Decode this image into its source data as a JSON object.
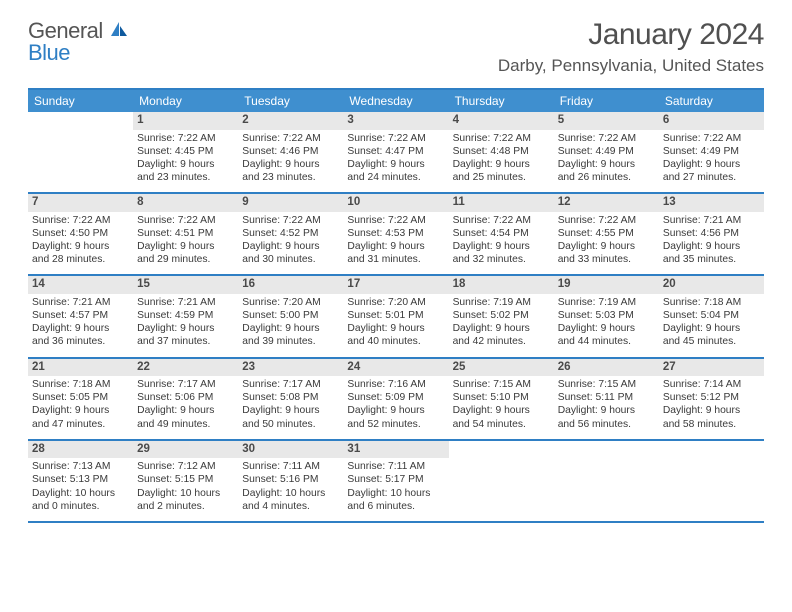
{
  "logo": {
    "word1": "General",
    "word2": "Blue"
  },
  "title": {
    "month": "January 2024",
    "location": "Darby, Pennsylvania, United States"
  },
  "colors": {
    "brand_blue": "#2f7fc4",
    "header_bg": "#3f8fcf",
    "daynum_bg": "#e8e8e8",
    "text": "#3a3a3a"
  },
  "dayNames": [
    "Sunday",
    "Monday",
    "Tuesday",
    "Wednesday",
    "Thursday",
    "Friday",
    "Saturday"
  ],
  "weeks": [
    [
      {
        "n": "",
        "sr": "",
        "ss": "",
        "dl": ""
      },
      {
        "n": "1",
        "sr": "Sunrise: 7:22 AM",
        "ss": "Sunset: 4:45 PM",
        "dl": "Daylight: 9 hours and 23 minutes."
      },
      {
        "n": "2",
        "sr": "Sunrise: 7:22 AM",
        "ss": "Sunset: 4:46 PM",
        "dl": "Daylight: 9 hours and 23 minutes."
      },
      {
        "n": "3",
        "sr": "Sunrise: 7:22 AM",
        "ss": "Sunset: 4:47 PM",
        "dl": "Daylight: 9 hours and 24 minutes."
      },
      {
        "n": "4",
        "sr": "Sunrise: 7:22 AM",
        "ss": "Sunset: 4:48 PM",
        "dl": "Daylight: 9 hours and 25 minutes."
      },
      {
        "n": "5",
        "sr": "Sunrise: 7:22 AM",
        "ss": "Sunset: 4:49 PM",
        "dl": "Daylight: 9 hours and 26 minutes."
      },
      {
        "n": "6",
        "sr": "Sunrise: 7:22 AM",
        "ss": "Sunset: 4:49 PM",
        "dl": "Daylight: 9 hours and 27 minutes."
      }
    ],
    [
      {
        "n": "7",
        "sr": "Sunrise: 7:22 AM",
        "ss": "Sunset: 4:50 PM",
        "dl": "Daylight: 9 hours and 28 minutes."
      },
      {
        "n": "8",
        "sr": "Sunrise: 7:22 AM",
        "ss": "Sunset: 4:51 PM",
        "dl": "Daylight: 9 hours and 29 minutes."
      },
      {
        "n": "9",
        "sr": "Sunrise: 7:22 AM",
        "ss": "Sunset: 4:52 PM",
        "dl": "Daylight: 9 hours and 30 minutes."
      },
      {
        "n": "10",
        "sr": "Sunrise: 7:22 AM",
        "ss": "Sunset: 4:53 PM",
        "dl": "Daylight: 9 hours and 31 minutes."
      },
      {
        "n": "11",
        "sr": "Sunrise: 7:22 AM",
        "ss": "Sunset: 4:54 PM",
        "dl": "Daylight: 9 hours and 32 minutes."
      },
      {
        "n": "12",
        "sr": "Sunrise: 7:22 AM",
        "ss": "Sunset: 4:55 PM",
        "dl": "Daylight: 9 hours and 33 minutes."
      },
      {
        "n": "13",
        "sr": "Sunrise: 7:21 AM",
        "ss": "Sunset: 4:56 PM",
        "dl": "Daylight: 9 hours and 35 minutes."
      }
    ],
    [
      {
        "n": "14",
        "sr": "Sunrise: 7:21 AM",
        "ss": "Sunset: 4:57 PM",
        "dl": "Daylight: 9 hours and 36 minutes."
      },
      {
        "n": "15",
        "sr": "Sunrise: 7:21 AM",
        "ss": "Sunset: 4:59 PM",
        "dl": "Daylight: 9 hours and 37 minutes."
      },
      {
        "n": "16",
        "sr": "Sunrise: 7:20 AM",
        "ss": "Sunset: 5:00 PM",
        "dl": "Daylight: 9 hours and 39 minutes."
      },
      {
        "n": "17",
        "sr": "Sunrise: 7:20 AM",
        "ss": "Sunset: 5:01 PM",
        "dl": "Daylight: 9 hours and 40 minutes."
      },
      {
        "n": "18",
        "sr": "Sunrise: 7:19 AM",
        "ss": "Sunset: 5:02 PM",
        "dl": "Daylight: 9 hours and 42 minutes."
      },
      {
        "n": "19",
        "sr": "Sunrise: 7:19 AM",
        "ss": "Sunset: 5:03 PM",
        "dl": "Daylight: 9 hours and 44 minutes."
      },
      {
        "n": "20",
        "sr": "Sunrise: 7:18 AM",
        "ss": "Sunset: 5:04 PM",
        "dl": "Daylight: 9 hours and 45 minutes."
      }
    ],
    [
      {
        "n": "21",
        "sr": "Sunrise: 7:18 AM",
        "ss": "Sunset: 5:05 PM",
        "dl": "Daylight: 9 hours and 47 minutes."
      },
      {
        "n": "22",
        "sr": "Sunrise: 7:17 AM",
        "ss": "Sunset: 5:06 PM",
        "dl": "Daylight: 9 hours and 49 minutes."
      },
      {
        "n": "23",
        "sr": "Sunrise: 7:17 AM",
        "ss": "Sunset: 5:08 PM",
        "dl": "Daylight: 9 hours and 50 minutes."
      },
      {
        "n": "24",
        "sr": "Sunrise: 7:16 AM",
        "ss": "Sunset: 5:09 PM",
        "dl": "Daylight: 9 hours and 52 minutes."
      },
      {
        "n": "25",
        "sr": "Sunrise: 7:15 AM",
        "ss": "Sunset: 5:10 PM",
        "dl": "Daylight: 9 hours and 54 minutes."
      },
      {
        "n": "26",
        "sr": "Sunrise: 7:15 AM",
        "ss": "Sunset: 5:11 PM",
        "dl": "Daylight: 9 hours and 56 minutes."
      },
      {
        "n": "27",
        "sr": "Sunrise: 7:14 AM",
        "ss": "Sunset: 5:12 PM",
        "dl": "Daylight: 9 hours and 58 minutes."
      }
    ],
    [
      {
        "n": "28",
        "sr": "Sunrise: 7:13 AM",
        "ss": "Sunset: 5:13 PM",
        "dl": "Daylight: 10 hours and 0 minutes."
      },
      {
        "n": "29",
        "sr": "Sunrise: 7:12 AM",
        "ss": "Sunset: 5:15 PM",
        "dl": "Daylight: 10 hours and 2 minutes."
      },
      {
        "n": "30",
        "sr": "Sunrise: 7:11 AM",
        "ss": "Sunset: 5:16 PM",
        "dl": "Daylight: 10 hours and 4 minutes."
      },
      {
        "n": "31",
        "sr": "Sunrise: 7:11 AM",
        "ss": "Sunset: 5:17 PM",
        "dl": "Daylight: 10 hours and 6 minutes."
      },
      {
        "n": "",
        "sr": "",
        "ss": "",
        "dl": ""
      },
      {
        "n": "",
        "sr": "",
        "ss": "",
        "dl": ""
      },
      {
        "n": "",
        "sr": "",
        "ss": "",
        "dl": ""
      }
    ]
  ]
}
